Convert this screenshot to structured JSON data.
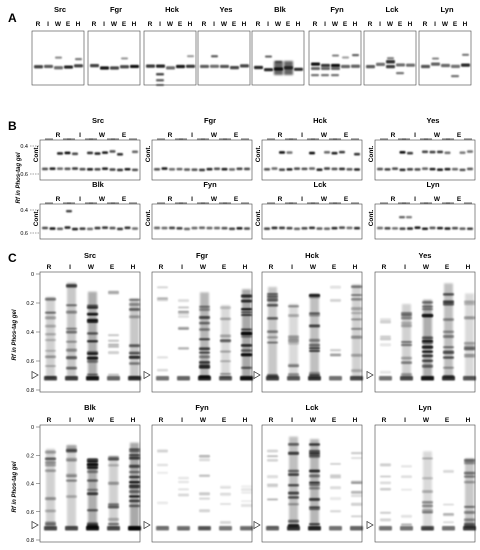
{
  "panels": [
    {
      "letter": "A",
      "lane_labels": [
        "R",
        "I",
        "W",
        "E",
        "H"
      ],
      "kinases": [
        "Src",
        "Fgr",
        "Hck",
        "Yes",
        "Blk",
        "Fyn",
        "Lck",
        "Lyn"
      ]
    },
    {
      "letter": "B",
      "control_label": "Cont.",
      "group_labels": [
        "R",
        "I",
        "W",
        "E"
      ],
      "axis_label": "Rf in Phos-tag gel",
      "ticks": [
        "0.4",
        "0.6"
      ],
      "kinases": [
        "Src",
        "Fgr",
        "Hck",
        "Yes",
        "Blk",
        "Fyn",
        "Lck",
        "Lyn"
      ]
    },
    {
      "letter": "C",
      "lane_labels": [
        "R",
        "I",
        "W",
        "E",
        "H"
      ],
      "axis_label": "Rf in Phos-tag gel",
      "ticks": [
        "0",
        "0.2",
        "0.4",
        "0.6",
        "0.8"
      ],
      "kinases": [
        "Src",
        "Fgr",
        "Hck",
        "Yes",
        "Blk",
        "Fyn",
        "Lck",
        "Lyn"
      ]
    }
  ]
}
